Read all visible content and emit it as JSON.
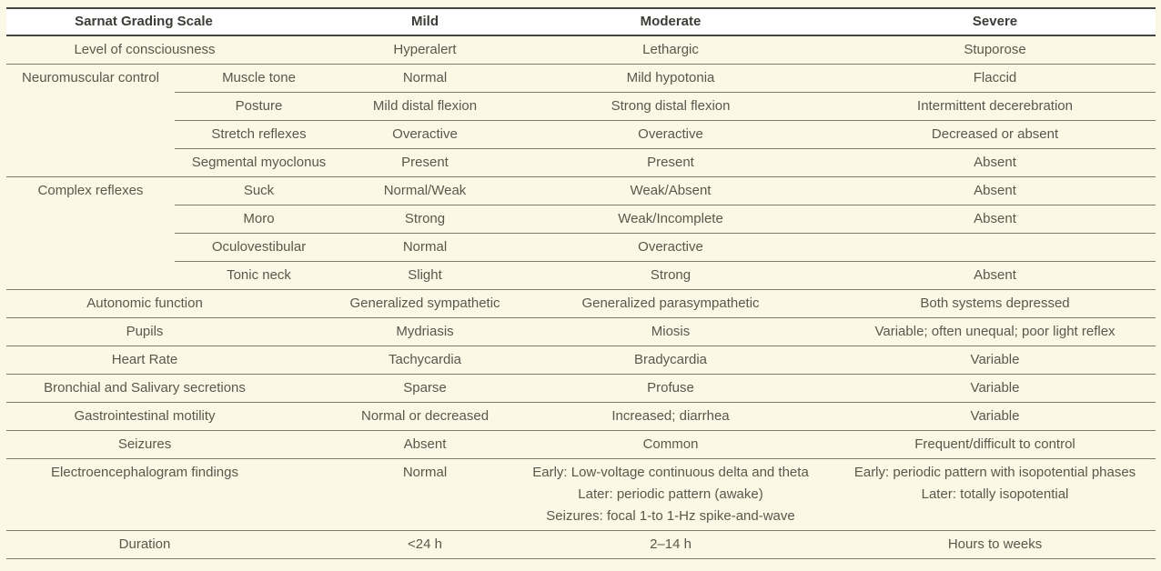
{
  "colors": {
    "page_background": "#fcf8e6",
    "header_background": "#ffffff",
    "heavy_rule": "#454540",
    "light_rule": "#7b7a71",
    "header_text": "#3c3b36",
    "body_text": "#5a574d"
  },
  "table": {
    "headers": {
      "scale": "Sarnat Grading Scale",
      "mild": "Mild",
      "moderate": "Moderate",
      "severe": "Severe"
    },
    "rows": [
      {
        "label": "Level of consciousness",
        "mild": "Hyperalert",
        "moderate": "Lethargic",
        "severe": "Stuporose"
      },
      {
        "category": "Neuromuscular control",
        "item": "Muscle tone",
        "mild": "Normal",
        "moderate": "Mild hypotonia",
        "severe": "Flaccid"
      },
      {
        "item": "Posture",
        "mild": "Mild distal flexion",
        "moderate": "Strong distal flexion",
        "severe": "Intermittent decerebration"
      },
      {
        "item": "Stretch reflexes",
        "mild": "Overactive",
        "moderate": "Overactive",
        "severe": "Decreased or absent"
      },
      {
        "item": "Segmental myoclonus",
        "mild": "Present",
        "moderate": "Present",
        "severe": "Absent"
      },
      {
        "category": "Complex reflexes",
        "item": "Suck",
        "mild": "Normal/Weak",
        "moderate": "Weak/Absent",
        "severe": "Absent"
      },
      {
        "item": "Moro",
        "mild": "Strong",
        "moderate": "Weak/Incomplete",
        "severe": "Absent"
      },
      {
        "item": "Oculovestibular",
        "mild": "Normal",
        "moderate": "Overactive",
        "severe": ""
      },
      {
        "item": "Tonic neck",
        "mild": "Slight",
        "moderate": "Strong",
        "severe": "Absent"
      },
      {
        "label": "Autonomic function",
        "mild": "Generalized sympathetic",
        "moderate": "Generalized parasympathetic",
        "severe": "Both systems depressed"
      },
      {
        "label": "Pupils",
        "mild": "Mydriasis",
        "moderate": "Miosis",
        "severe": "Variable; often unequal; poor light reflex"
      },
      {
        "label": "Heart Rate",
        "mild": "Tachycardia",
        "moderate": "Bradycardia",
        "severe": "Variable"
      },
      {
        "label": "Bronchial and Salivary secretions",
        "mild": "Sparse",
        "moderate": "Profuse",
        "severe": "Variable"
      },
      {
        "label": "Gastrointestinal motility",
        "mild": "Normal or decreased",
        "moderate": "Increased; diarrhea",
        "severe": "Variable"
      },
      {
        "label": "Seizures",
        "mild": "Absent",
        "moderate": "Common",
        "severe": "Frequent/difficult to control"
      },
      {
        "label": "Electroencephalogram findings",
        "mild": "Normal",
        "moderate_lines": [
          "Early: Low-voltage continuous delta and theta",
          "Later: periodic pattern (awake)",
          "Seizures: focal 1-to 1-Hz spike-and-wave"
        ],
        "severe_lines": [
          "Early: periodic pattern with isopotential phases",
          "Later: totally isopotential"
        ]
      },
      {
        "label": "Duration",
        "mild": "<24 h",
        "moderate": "2–14 h",
        "severe": "Hours to weeks"
      }
    ]
  }
}
